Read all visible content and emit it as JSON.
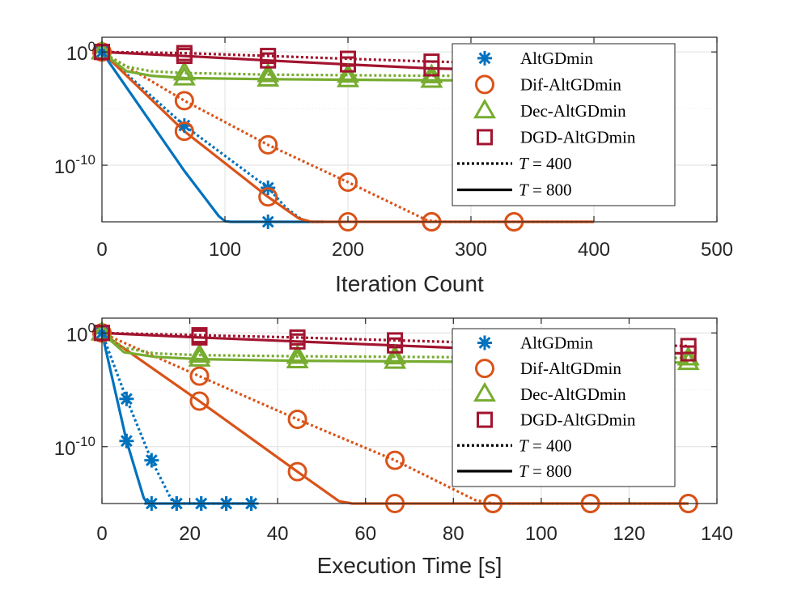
{
  "chart_data": [
    {
      "type": "line",
      "title": "",
      "xlabel": "Iteration Count",
      "ylabel": "",
      "yscale": "log",
      "xlim": [
        0,
        500
      ],
      "ylim_log10": [
        -15,
        1.3
      ],
      "xticks": [
        "0",
        "100",
        "200",
        "300",
        "400",
        "500"
      ],
      "yticks": [
        {
          "base": "10",
          "exp": "0",
          "log": 0
        },
        {
          "base": "10",
          "exp": "-10",
          "log": -10
        }
      ],
      "grid": true,
      "legend_position": "top-right",
      "legend": [
        {
          "label": "AltGDmin",
          "marker": "asterisk",
          "color": "#0072BD"
        },
        {
          "label": "Dif-AltGDmin",
          "marker": "circle",
          "color": "#D95319"
        },
        {
          "label": "Dec-AltGDmin",
          "marker": "triangle",
          "color": "#77AC30"
        },
        {
          "label": "DGD-AltGDmin",
          "marker": "square",
          "color": "#A2142F"
        },
        {
          "label_var": "T",
          "label_rest": "= 400",
          "style": "dotted"
        },
        {
          "label_var": "T",
          "label_rest": "= 800",
          "style": "solid"
        }
      ],
      "series": [
        {
          "name": "AltGDmin",
          "T": 400,
          "color": "#0072BD",
          "marker": "asterisk",
          "x": [
            0,
            67,
            135,
            150,
            165,
            180
          ],
          "log10y": [
            0,
            -6.5,
            -12,
            -13.8,
            -15,
            -15
          ],
          "markers_x": [
            0,
            67,
            135
          ],
          "markers_log10y": [
            0,
            -6.5,
            -12
          ]
        },
        {
          "name": "AltGDmin",
          "T": 800,
          "color": "#0072BD",
          "marker": "asterisk",
          "x": [
            0,
            67,
            95,
            100,
            105,
            180
          ],
          "log10y": [
            0,
            -10.5,
            -14.5,
            -14.95,
            -15,
            -15
          ],
          "markers_x": [
            0,
            135
          ],
          "markers_log10y": [
            0,
            -15
          ]
        },
        {
          "name": "Dif-AltGDmin",
          "T": 400,
          "color": "#D95319",
          "marker": "circle",
          "x": [
            0,
            67,
            135,
            200,
            265,
            280,
            400
          ],
          "log10y": [
            0,
            -4.3,
            -8.2,
            -11.5,
            -14.9,
            -15,
            -15
          ],
          "markers_x": [
            0,
            67,
            135,
            200,
            268,
            335
          ],
          "markers_log10y": [
            0,
            -4.3,
            -8.2,
            -11.5,
            -15,
            -15
          ]
        },
        {
          "name": "Dif-AltGDmin",
          "T": 800,
          "color": "#D95319",
          "marker": "circle",
          "x": [
            0,
            67,
            135,
            160,
            170,
            400
          ],
          "log10y": [
            0,
            -7,
            -12.8,
            -14.7,
            -15,
            -15
          ],
          "markers_x": [
            0,
            67,
            135,
            200,
            268,
            335
          ],
          "markers_log10y": [
            0,
            -7,
            -12.8,
            -15,
            -15,
            -15
          ]
        },
        {
          "name": "Dec-AltGDmin",
          "T": 400,
          "color": "#77AC30",
          "marker": "triangle",
          "x": [
            0,
            20,
            40,
            67,
            135,
            200,
            268,
            400
          ],
          "log10y": [
            0,
            -1.3,
            -1.7,
            -1.85,
            -2.0,
            -2.05,
            -2.1,
            -2.1
          ],
          "markers_x": [
            0,
            67,
            135,
            200,
            268
          ],
          "markers_log10y": [
            0,
            -1.85,
            -2.0,
            -2.05,
            -2.1
          ]
        },
        {
          "name": "Dec-AltGDmin",
          "T": 800,
          "color": "#77AC30",
          "marker": "triangle",
          "x": [
            0,
            20,
            40,
            67,
            135,
            200,
            268,
            400
          ],
          "log10y": [
            0,
            -1.7,
            -2.1,
            -2.3,
            -2.4,
            -2.45,
            -2.5,
            -2.5
          ],
          "markers_x": [
            0,
            67,
            135,
            200,
            268
          ],
          "markers_log10y": [
            0,
            -2.3,
            -2.4,
            -2.45,
            -2.5
          ]
        },
        {
          "name": "DGD-AltGDmin",
          "T": 400,
          "color": "#A2142F",
          "marker": "square",
          "x": [
            0,
            67,
            135,
            200,
            268,
            400
          ],
          "log10y": [
            0,
            -0.1,
            -0.35,
            -0.6,
            -0.85,
            -1.1
          ],
          "markers_x": [
            0,
            67,
            135,
            200,
            268
          ],
          "markers_log10y": [
            0,
            -0.1,
            -0.35,
            -0.6,
            -0.85
          ]
        },
        {
          "name": "DGD-AltGDmin",
          "T": 800,
          "color": "#A2142F",
          "marker": "square",
          "x": [
            0,
            67,
            135,
            200,
            268,
            400
          ],
          "log10y": [
            0,
            -0.35,
            -0.75,
            -1.1,
            -1.45,
            -1.75
          ],
          "markers_x": [
            0,
            67,
            135,
            200,
            268
          ],
          "markers_log10y": [
            0,
            -0.35,
            -0.75,
            -1.1,
            -1.45
          ]
        }
      ]
    },
    {
      "type": "line",
      "title": "",
      "xlabel": "Execution Time [s]",
      "ylabel": "",
      "yscale": "log",
      "xlim": [
        0,
        140
      ],
      "ylim_log10": [
        -15,
        1.3
      ],
      "xticks": [
        "0",
        "20",
        "40",
        "60",
        "80",
        "100",
        "120",
        "140"
      ],
      "yticks": [
        {
          "base": "10",
          "exp": "0",
          "log": 0
        },
        {
          "base": "10",
          "exp": "-10",
          "log": -10
        }
      ],
      "grid": true,
      "legend_position": "top-right",
      "legend": [
        {
          "label": "AltGDmin",
          "marker": "asterisk",
          "color": "#0072BD"
        },
        {
          "label": "Dif-AltGDmin",
          "marker": "circle",
          "color": "#D95319"
        },
        {
          "label": "Dec-AltGDmin",
          "marker": "triangle",
          "color": "#77AC30"
        },
        {
          "label": "DGD-AltGDmin",
          "marker": "square",
          "color": "#A2142F"
        },
        {
          "label_var": "T",
          "label_rest": "= 400",
          "style": "dotted"
        },
        {
          "label_var": "T",
          "label_rest": "= 800",
          "style": "solid"
        }
      ],
      "series": [
        {
          "name": "AltGDmin",
          "T": 400,
          "color": "#0072BD",
          "marker": "asterisk",
          "x": [
            0,
            5.6,
            11.3,
            16,
            17,
            34
          ],
          "log10y": [
            0,
            -5.8,
            -11.2,
            -14.8,
            -15,
            -15
          ],
          "markers_x": [
            0,
            5.6,
            11.3,
            17,
            22.6,
            28.3,
            34
          ],
          "markers_log10y": [
            0,
            -5.8,
            -11.2,
            -15,
            -15,
            -15,
            -15
          ]
        },
        {
          "name": "AltGDmin",
          "T": 800,
          "color": "#0072BD",
          "marker": "asterisk",
          "x": [
            0,
            5.6,
            9.5,
            10.3,
            11.3,
            34
          ],
          "log10y": [
            0,
            -9.5,
            -14.5,
            -14.95,
            -15,
            -15
          ],
          "markers_x": [
            0,
            5.6,
            11.3,
            17,
            22.6,
            28.3,
            34
          ],
          "markers_log10y": [
            0,
            -9.5,
            -15,
            -15,
            -15,
            -15,
            -15
          ]
        },
        {
          "name": "Dif-AltGDmin",
          "T": 400,
          "color": "#D95319",
          "marker": "circle",
          "x": [
            0,
            22.2,
            44.5,
            66.7,
            85,
            89,
            133.5
          ],
          "log10y": [
            0,
            -3.8,
            -7.6,
            -11.2,
            -14.7,
            -15,
            -15
          ],
          "markers_x": [
            0,
            22.2,
            44.5,
            66.7,
            89,
            111.2,
            133.5
          ],
          "markers_log10y": [
            0,
            -3.8,
            -7.6,
            -11.2,
            -15,
            -15,
            -15
          ]
        },
        {
          "name": "Dif-AltGDmin",
          "T": 800,
          "color": "#D95319",
          "marker": "circle",
          "x": [
            0,
            22.2,
            44.5,
            54,
            57,
            133.5
          ],
          "log10y": [
            0,
            -6,
            -12.2,
            -14.8,
            -15,
            -15
          ],
          "markers_x": [
            0,
            22.2,
            44.5,
            66.7,
            89,
            111.2,
            133.5
          ],
          "markers_log10y": [
            0,
            -6,
            -12.2,
            -15,
            -15,
            -15,
            -15
          ]
        },
        {
          "name": "Dec-AltGDmin",
          "T": 400,
          "color": "#77AC30",
          "marker": "triangle",
          "x": [
            0,
            5,
            12,
            22.2,
            44.5,
            66.7,
            89,
            133.5
          ],
          "log10y": [
            0,
            -1.3,
            -1.8,
            -1.95,
            -2.05,
            -2.1,
            -2.15,
            -2.2
          ],
          "markers_x": [
            0,
            22.2,
            44.5,
            66.7,
            133.5
          ],
          "markers_log10y": [
            0,
            -1.95,
            -2.05,
            -2.1,
            -2.2
          ]
        },
        {
          "name": "Dec-AltGDmin",
          "T": 800,
          "color": "#77AC30",
          "marker": "triangle",
          "x": [
            0,
            5,
            12,
            22.2,
            44.5,
            66.7,
            89,
            133.5
          ],
          "log10y": [
            0,
            -1.7,
            -2.1,
            -2.3,
            -2.45,
            -2.5,
            -2.55,
            -2.6
          ],
          "markers_x": [
            0,
            22.2,
            44.5,
            66.7,
            133.5
          ],
          "markers_log10y": [
            0,
            -2.3,
            -2.45,
            -2.5,
            -2.6
          ]
        },
        {
          "name": "DGD-AltGDmin",
          "T": 400,
          "color": "#A2142F",
          "marker": "square",
          "x": [
            0,
            22.2,
            44.5,
            66.7,
            89,
            133.5
          ],
          "log10y": [
            0,
            -0.2,
            -0.4,
            -0.65,
            -0.9,
            -1.15
          ],
          "markers_x": [
            0,
            22.2,
            44.5,
            66.7,
            133.5
          ],
          "markers_log10y": [
            0,
            -0.2,
            -0.4,
            -0.65,
            -1.15
          ]
        },
        {
          "name": "DGD-AltGDmin",
          "T": 800,
          "color": "#A2142F",
          "marker": "square",
          "x": [
            0,
            22.2,
            44.5,
            66.7,
            89,
            133.5
          ],
          "log10y": [
            0,
            -0.4,
            -0.75,
            -1.1,
            -1.45,
            -1.8
          ],
          "markers_x": [
            0,
            22.2,
            44.5,
            66.7,
            133.5
          ],
          "markers_log10y": [
            0,
            -0.4,
            -0.75,
            -1.1,
            -1.8
          ]
        }
      ]
    }
  ]
}
